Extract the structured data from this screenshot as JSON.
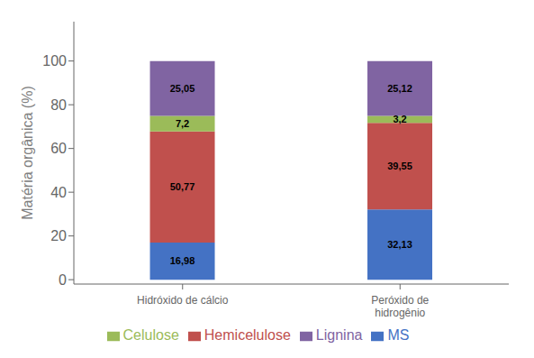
{
  "chart_data": {
    "type": "bar",
    "stacked": true,
    "data_labels": true,
    "categories": [
      "Hidróxido de cálcio",
      "Peróxido de\nhidrogênio"
    ],
    "ylabel": "Matéria orgânica (%)",
    "ylim": [
      -2,
      118
    ],
    "yticks": [
      0,
      20,
      40,
      60,
      80,
      100
    ],
    "legend": "bottom",
    "series": [
      {
        "name": "MS",
        "color": "#4472C4",
        "values": [
          16.98,
          32.13
        ],
        "value_labels": [
          "16,98",
          "32,13"
        ]
      },
      {
        "name": "Hemicelulose",
        "color": "#C0504D",
        "values": [
          50.77,
          39.55
        ],
        "value_labels": [
          "50,77",
          "39,55"
        ]
      },
      {
        "name": "Celulose",
        "color": "#9BBB59",
        "values": [
          7.2,
          3.2
        ],
        "value_labels": [
          "7,2",
          "3,2"
        ]
      },
      {
        "name": "Lignina",
        "color": "#8064A2",
        "values": [
          25.05,
          25.12
        ],
        "value_labels": [
          "25,05",
          "25,12"
        ]
      }
    ]
  }
}
